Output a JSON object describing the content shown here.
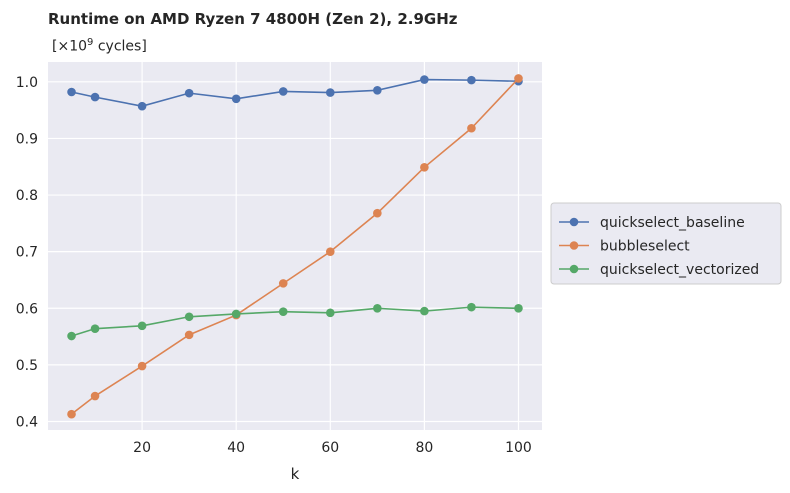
{
  "chart_data": {
    "type": "line",
    "title": "Runtime on AMD Ryzen 7 4800H (Zen 2),  2.9GHz",
    "subtitle_prefix": "[×10",
    "subtitle_exp": "9",
    "subtitle_suffix": " cycles]",
    "xlabel": "k",
    "ylabel": "",
    "xlim": [
      0,
      105
    ],
    "ylim": [
      0.385,
      1.035
    ],
    "xticks": [
      20,
      40,
      60,
      80,
      100
    ],
    "yticks": [
      0.4,
      0.5,
      0.6,
      0.7,
      0.8,
      0.9,
      1.0
    ],
    "ytick_labels": [
      "0.4",
      "0.5",
      "0.6",
      "0.7",
      "0.8",
      "0.9",
      "1.0"
    ],
    "grid": true,
    "legend_position": "center-right-outside",
    "x": [
      5,
      10,
      20,
      30,
      40,
      50,
      60,
      70,
      80,
      90,
      100
    ],
    "series": [
      {
        "name": "quickselect_baseline",
        "color": "#4c72b0",
        "values": [
          0.982,
          0.973,
          0.957,
          0.98,
          0.97,
          0.983,
          0.981,
          0.985,
          1.004,
          1.003,
          1.001
        ]
      },
      {
        "name": "bubbleselect",
        "color": "#dd8452",
        "values": [
          0.413,
          0.445,
          0.498,
          0.553,
          0.588,
          0.644,
          0.7,
          0.768,
          0.849,
          0.918,
          1.006
        ]
      },
      {
        "name": "quickselect_vectorized",
        "color": "#55a868",
        "values": [
          0.551,
          0.564,
          0.569,
          0.585,
          0.59,
          0.594,
          0.592,
          0.6,
          0.595,
          0.602,
          0.6
        ]
      }
    ]
  }
}
